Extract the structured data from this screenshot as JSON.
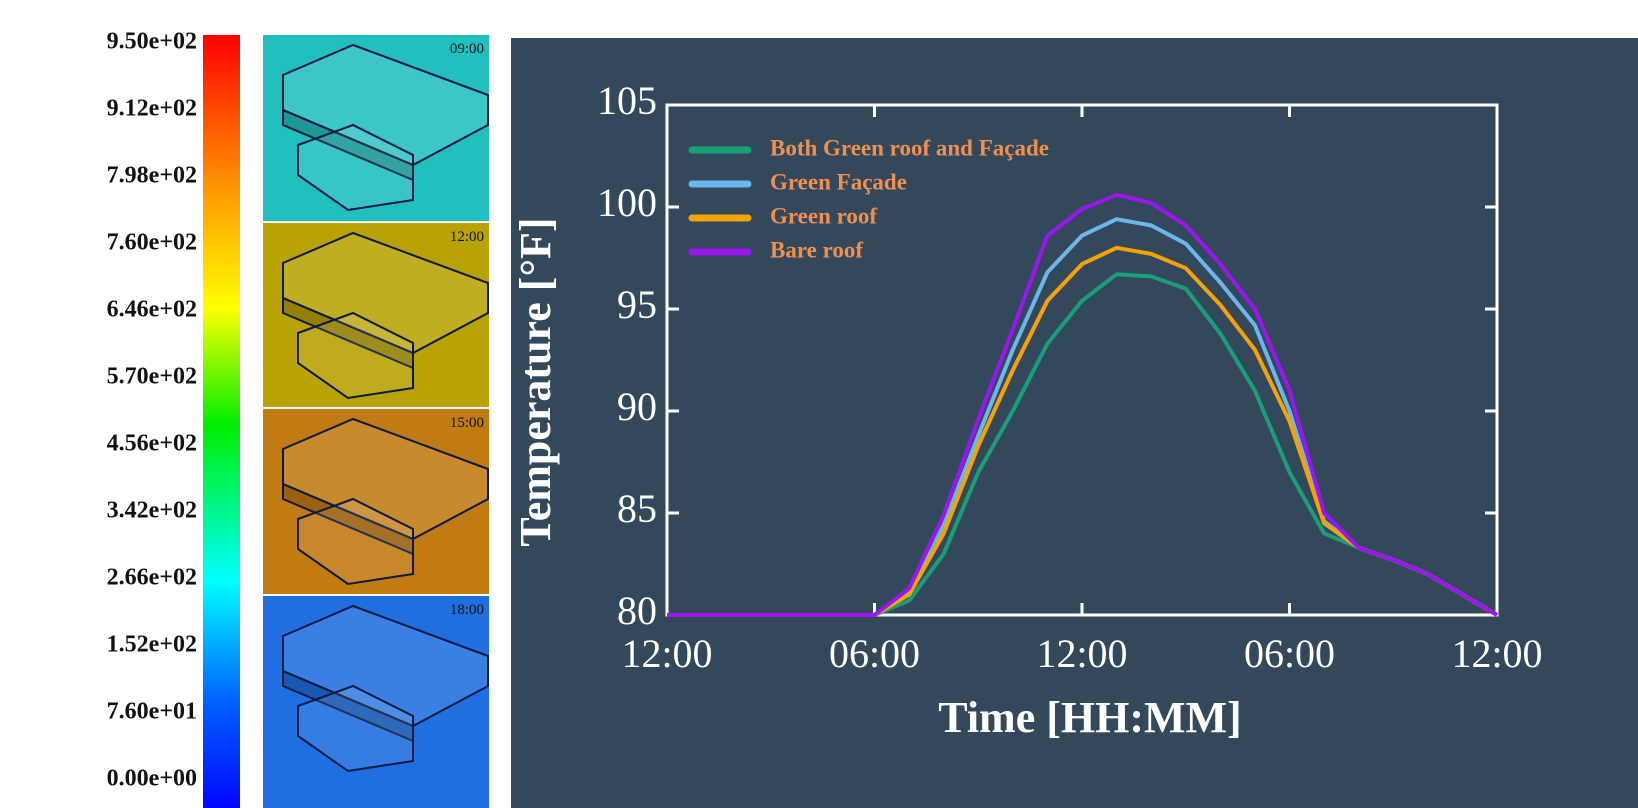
{
  "colorbar": {
    "labels": [
      "9.50e+02",
      "9.12e+02",
      "7.98e+02",
      "7.60e+02",
      "6.46e+02",
      "5.70e+02",
      "4.56e+02",
      "3.42e+02",
      "2.66e+02",
      "1.52e+02",
      "7.60e+01",
      "0.00e+00"
    ]
  },
  "panels": [
    {
      "label": "09:00",
      "color": "#22bfbf"
    },
    {
      "label": "12:00",
      "color": "#b9a204"
    },
    {
      "label": "15:00",
      "color": "#c27a12"
    },
    {
      "label": "18:00",
      "color": "#1f6fe0"
    }
  ],
  "chart_data": {
    "type": "line",
    "x_label": "Time [HH:MM]",
    "y_label": "Temperature [°F]",
    "x": [
      0,
      1,
      2,
      3,
      4,
      5,
      6,
      7,
      8,
      9,
      10,
      11,
      12,
      13,
      14,
      15,
      16,
      17,
      18,
      19,
      20,
      21,
      22,
      23,
      24
    ],
    "xlim": [
      0,
      24
    ],
    "xticks": [
      {
        "value": 0,
        "label": "12:00"
      },
      {
        "value": 6,
        "label": "06:00"
      },
      {
        "value": 12,
        "label": "12:00"
      },
      {
        "value": 18,
        "label": "06:00"
      },
      {
        "value": 24,
        "label": "12:00"
      }
    ],
    "ylim": [
      80,
      105
    ],
    "yticks": [
      80,
      85,
      90,
      95,
      100,
      105
    ],
    "grid": false,
    "series": [
      {
        "name": "Both Green roof and Façade",
        "color": "#1a9e77",
        "values": [
          80,
          80,
          80,
          80,
          80,
          80,
          80,
          80.7,
          83.0,
          87.0,
          90.0,
          93.3,
          95.4,
          96.7,
          96.6,
          96.0,
          93.8,
          91.0,
          87.0,
          84.0,
          83.3,
          82.7,
          82.0,
          81.0,
          80.0
        ]
      },
      {
        "name": "Green Façade",
        "color": "#6cb6ea",
        "values": [
          80,
          80,
          80,
          80,
          80,
          80,
          80,
          81.1,
          84.4,
          88.8,
          93.0,
          96.8,
          98.6,
          99.4,
          99.1,
          98.2,
          96.3,
          94.2,
          90.0,
          84.6,
          83.3,
          82.7,
          82.0,
          81.0,
          80.0
        ]
      },
      {
        "name": "Green roof",
        "color": "#f5a300",
        "values": [
          80,
          80,
          80,
          80,
          80,
          80,
          80,
          81.0,
          84.0,
          88.3,
          92.0,
          95.4,
          97.2,
          98.0,
          97.7,
          97.0,
          95.2,
          93.0,
          89.5,
          84.5,
          83.3,
          82.7,
          82.0,
          81.0,
          80.0
        ]
      },
      {
        "name": "Bare roof",
        "color": "#9a16f0",
        "values": [
          80,
          80,
          80,
          80,
          80,
          80,
          80,
          81.3,
          84.9,
          89.6,
          94.0,
          98.6,
          99.9,
          100.6,
          100.2,
          99.1,
          97.2,
          95.0,
          91.0,
          85.0,
          83.3,
          82.7,
          82.0,
          81.0,
          80.0
        ]
      }
    ]
  }
}
